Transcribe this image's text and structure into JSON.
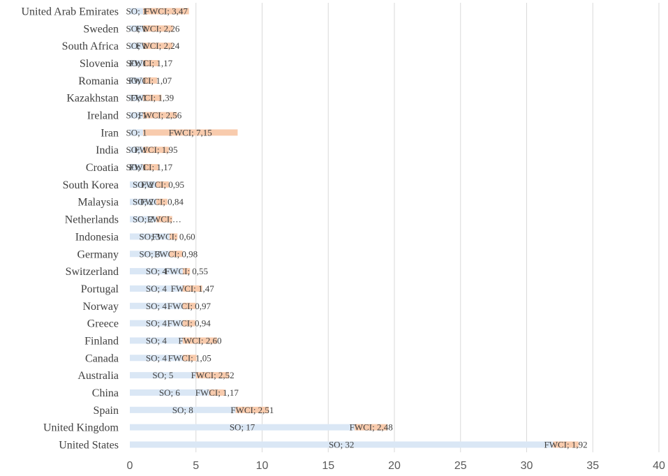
{
  "chart_data": {
    "type": "bar",
    "orientation": "horizontal",
    "stacked": true,
    "categories": [
      "United Arab Emirates",
      "Sweden",
      "South Africa",
      "Slovenia",
      "Romania",
      "Kazakhstan",
      "Ireland",
      "Iran",
      "India",
      "Croatia",
      "South Korea",
      "Malaysia",
      "Netherlands",
      "Indonesia",
      "Germany",
      "Switzerland",
      "Portugal",
      "Norway",
      "Greece",
      "Finland",
      "Canada",
      "Australia",
      "China",
      "Spain",
      "United Kingdom",
      "United States"
    ],
    "series": [
      {
        "name": "SO",
        "color": "#dae7f5",
        "values": [
          1,
          1,
          1,
          1,
          1,
          1,
          1,
          1,
          1,
          1,
          2,
          2,
          2,
          3,
          3,
          4,
          4,
          4,
          4,
          4,
          4,
          5,
          6,
          8,
          17,
          32
        ],
        "labels": [
          "SO; 1",
          "SO; 1",
          "SO; 1",
          "SO; 1",
          "SO; 1",
          "SO; 1",
          "SO; 1",
          "SO; 1",
          "SO; 1",
          "SO; 1",
          "SO; 2",
          "SO; 2",
          "SO; 2",
          "SO; 3",
          "SO; 3",
          "SO; 4",
          "SO; 4",
          "SO; 4",
          "SO; 4",
          "SO; 4",
          "SO; 4",
          "SO; 5",
          "SO; 6",
          "SO; 8",
          "SO; 17",
          "SO; 32"
        ]
      },
      {
        "name": "FWCI",
        "color": "#f8cbad",
        "values": [
          3.47,
          2.26,
          2.24,
          1.17,
          1.07,
          1.39,
          2.56,
          7.15,
          1.95,
          1.17,
          0.95,
          0.84,
          1.2,
          0.6,
          0.98,
          0.55,
          1.47,
          0.97,
          0.94,
          2.6,
          1.05,
          2.52,
          1.17,
          2.51,
          2.48,
          1.92
        ],
        "labels": [
          "FWCI; 3,47",
          "FWCI; 2,26",
          "FWCI; 2,24",
          "FWCI; 1,17",
          "FWCI; 1,07",
          "FWCI; 1,39",
          "FWCI; 2,56",
          "FWCI; 7,15",
          "FWCI; 1,95",
          "FWCI; 1,17",
          "FWCI; 0,95",
          "FWCI; 0,84",
          "FWCI;…",
          "FWCI; 0,60",
          "FWCI; 0,98",
          "FWCI; 0,55",
          "FWCI; 1,47",
          "FWCI; 0,97",
          "FWCI; 0,94",
          "FWCI; 2,60",
          "FWCI; 1,05",
          "FWCI; 2,52",
          "FWCI; 1,17",
          "FWCI; 2,51",
          "FWCI; 2,48",
          "FWCI; 1,92"
        ]
      }
    ],
    "xlim": [
      0,
      40
    ],
    "xticks": [
      "0",
      "5",
      "10",
      "15",
      "20",
      "25",
      "30",
      "35",
      "40"
    ],
    "grid": "vertical",
    "legend": "none"
  }
}
